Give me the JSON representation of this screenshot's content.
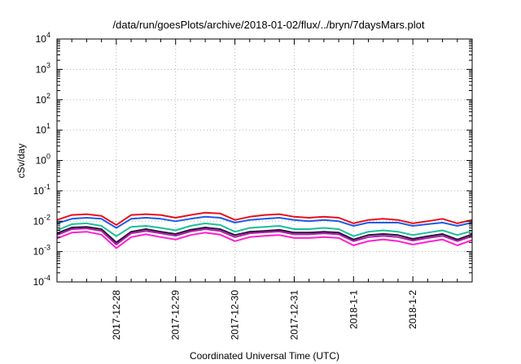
{
  "chart_data": {
    "type": "line",
    "title": "/data/run/goesPlots/archive/2018-01-02/flux/../bryn/7daysMars.plot",
    "xlabel": "Coordinated Universal Time (UTC)",
    "ylabel": "cSv/day",
    "yscale": "log",
    "ylim": [
      0.0001,
      10000
    ],
    "y_ticks": [
      {
        "base": "10",
        "exp": "4"
      },
      {
        "base": "10",
        "exp": "3"
      },
      {
        "base": "10",
        "exp": "2"
      },
      {
        "base": "10",
        "exp": "1"
      },
      {
        "base": "10",
        "exp": "0"
      },
      {
        "base": "10",
        "exp": "-1"
      },
      {
        "base": "10",
        "exp": "-2"
      },
      {
        "base": "10",
        "exp": "-3"
      },
      {
        "base": "10",
        "exp": "-4"
      }
    ],
    "x_range": [
      "2017-12-27 00:00",
      "2018-01-03 00:00"
    ],
    "x_ticks": [
      "2017-12-28",
      "2017-12-29",
      "2017-12-30",
      "2017-12-31",
      "2018-1-1",
      "2018-1-2"
    ],
    "grid": true,
    "x": [
      "2017-12-27 00:00",
      "2017-12-27 06:00",
      "2017-12-27 12:00",
      "2017-12-27 18:00",
      "2017-12-28 00:00",
      "2017-12-28 06:00",
      "2017-12-28 12:00",
      "2017-12-28 18:00",
      "2017-12-29 00:00",
      "2017-12-29 06:00",
      "2017-12-29 12:00",
      "2017-12-29 18:00",
      "2017-12-30 00:00",
      "2017-12-30 06:00",
      "2017-12-30 12:00",
      "2017-12-30 18:00",
      "2017-12-31 00:00",
      "2017-12-31 06:00",
      "2017-12-31 12:00",
      "2017-12-31 18:00",
      "2018-01-01 00:00",
      "2018-01-01 06:00",
      "2018-01-01 12:00",
      "2018-01-01 18:00",
      "2018-01-02 00:00",
      "2018-01-02 06:00",
      "2018-01-02 12:00",
      "2018-01-02 18:00",
      "2018-01-03 00:00"
    ],
    "series": [
      {
        "color": "#e8101a",
        "values": [
          0.011,
          0.016,
          0.017,
          0.015,
          0.0075,
          0.016,
          0.017,
          0.016,
          0.013,
          0.016,
          0.019,
          0.018,
          0.011,
          0.014,
          0.016,
          0.017,
          0.014,
          0.013,
          0.014,
          0.013,
          0.0085,
          0.011,
          0.012,
          0.011,
          0.0085,
          0.01,
          0.012,
          0.0085,
          0.011
        ]
      },
      {
        "color": "#1f5be8",
        "values": [
          0.0085,
          0.012,
          0.013,
          0.012,
          0.006,
          0.012,
          0.013,
          0.012,
          0.01,
          0.012,
          0.014,
          0.013,
          0.009,
          0.011,
          0.012,
          0.013,
          0.011,
          0.01,
          0.011,
          0.01,
          0.007,
          0.009,
          0.009,
          0.009,
          0.007,
          0.008,
          0.009,
          0.007,
          0.009
        ]
      },
      {
        "color": "#1bbf9b",
        "values": [
          0.005,
          0.008,
          0.0085,
          0.007,
          0.0032,
          0.0065,
          0.007,
          0.006,
          0.005,
          0.007,
          0.0085,
          0.0075,
          0.0045,
          0.006,
          0.0065,
          0.007,
          0.0055,
          0.0055,
          0.006,
          0.0055,
          0.0032,
          0.0045,
          0.005,
          0.0045,
          0.0035,
          0.0042,
          0.005,
          0.0035,
          0.0048
        ]
      },
      {
        "color": "#2a0f36",
        "values": [
          0.004,
          0.0062,
          0.0065,
          0.0055,
          0.002,
          0.0045,
          0.0055,
          0.0045,
          0.0038,
          0.0052,
          0.0062,
          0.0055,
          0.0035,
          0.0045,
          0.0048,
          0.0052,
          0.0042,
          0.0042,
          0.0045,
          0.0042,
          0.0025,
          0.0035,
          0.0038,
          0.0035,
          0.0026,
          0.0032,
          0.0038,
          0.0025,
          0.0037
        ]
      },
      {
        "color": "#b01aa8",
        "values": [
          0.0035,
          0.0055,
          0.0058,
          0.0048,
          0.0017,
          0.004,
          0.0048,
          0.004,
          0.0033,
          0.0046,
          0.0055,
          0.0048,
          0.003,
          0.004,
          0.0043,
          0.0046,
          0.0037,
          0.0037,
          0.004,
          0.0037,
          0.0022,
          0.003,
          0.0033,
          0.003,
          0.0023,
          0.0028,
          0.0033,
          0.0022,
          0.0032
        ]
      },
      {
        "color": "#ff1fd2",
        "values": [
          0.0027,
          0.0042,
          0.0045,
          0.0036,
          0.0013,
          0.003,
          0.0037,
          0.003,
          0.0025,
          0.0035,
          0.0042,
          0.0036,
          0.0022,
          0.003,
          0.0033,
          0.0035,
          0.0028,
          0.0028,
          0.003,
          0.0028,
          0.0016,
          0.0022,
          0.0025,
          0.0022,
          0.0017,
          0.0021,
          0.0025,
          0.0016,
          0.0024
        ]
      }
    ]
  }
}
